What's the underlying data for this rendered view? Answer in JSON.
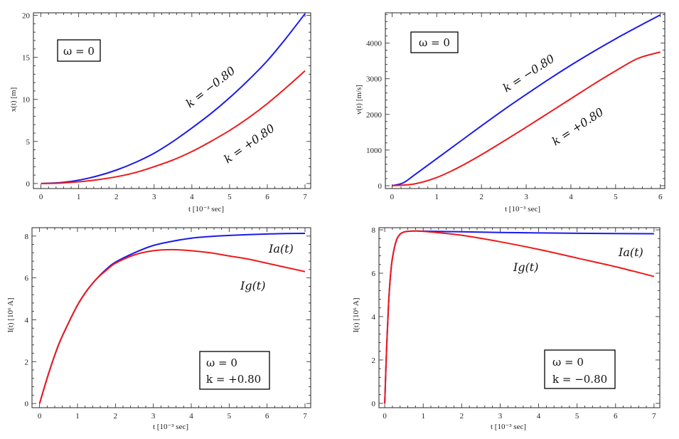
{
  "chart_data": [
    {
      "id": "x_vs_t",
      "type": "line",
      "title": "",
      "xlabel": "t   [10⁻³ sec]",
      "ylabel": "x(t)   [m]",
      "xlim": [
        -0.2,
        7.15
      ],
      "ylim": [
        -0.6,
        20.3
      ],
      "xticks": [
        0,
        1,
        2,
        3,
        4,
        5,
        6,
        7
      ],
      "yticks": [
        0,
        5,
        10,
        15,
        20
      ],
      "box_lines": [
        "ω = 0"
      ],
      "series": [
        {
          "name": "k = −0.80",
          "color": "#1a1aee",
          "x": [
            0,
            0.5,
            1,
            1.5,
            2,
            2.5,
            3,
            3.5,
            4,
            4.5,
            5,
            5.5,
            6,
            6.5,
            7
          ],
          "y": [
            0,
            0.1,
            0.4,
            0.9,
            1.6,
            2.5,
            3.6,
            5.0,
            6.6,
            8.3,
            10.2,
            12.3,
            14.6,
            17.3,
            20.2
          ]
        },
        {
          "name": "k = +0.80",
          "color": "#ee1a1a",
          "x": [
            0,
            0.5,
            1,
            1.5,
            2,
            2.5,
            3,
            3.5,
            4,
            4.5,
            5,
            5.5,
            6,
            6.5,
            7
          ],
          "y": [
            0,
            0.05,
            0.2,
            0.45,
            0.8,
            1.3,
            2.0,
            2.8,
            3.8,
            5.0,
            6.3,
            7.8,
            9.5,
            11.4,
            13.4
          ]
        }
      ],
      "curve_labels": [
        "k = −0.80",
        "k = +0.80"
      ]
    },
    {
      "id": "v_vs_t",
      "type": "line",
      "title": "",
      "xlabel": "t   [10⁻³ sec]",
      "ylabel": "v(t)   [m/s]",
      "xlim": [
        -0.15,
        6.1
      ],
      "ylim": [
        -80,
        4850
      ],
      "xticks": [
        0,
        1,
        2,
        3,
        4,
        5,
        6
      ],
      "yticks": [
        0,
        1000,
        2000,
        3000,
        4000
      ],
      "box_lines": [
        "ω = 0"
      ],
      "series": [
        {
          "name": "k = −0.80",
          "color": "#1a1aee",
          "x": [
            0,
            0.25,
            0.5,
            1,
            1.5,
            2,
            2.5,
            3,
            3.5,
            4,
            4.5,
            5,
            5.5,
            6
          ],
          "y": [
            0,
            80,
            300,
            760,
            1220,
            1680,
            2130,
            2560,
            2980,
            3380,
            3760,
            4120,
            4460,
            4790
          ]
        },
        {
          "name": "k = +0.80",
          "color": "#ee1a1a",
          "x": [
            0,
            0.5,
            1,
            1.5,
            2,
            2.5,
            3,
            3.5,
            4,
            4.5,
            5,
            5.5,
            6
          ],
          "y": [
            0,
            50,
            230,
            520,
            870,
            1250,
            1640,
            2040,
            2440,
            2840,
            3220,
            3570,
            3750
          ]
        }
      ],
      "curve_labels": [
        "k = −0.80",
        "k = +0.80"
      ]
    },
    {
      "id": "I_vs_t_kplus",
      "type": "line",
      "title": "",
      "xlabel": "t   [10⁻³ sec]",
      "ylabel": "I(t)   [10⁶ A]",
      "xlim": [
        -0.2,
        7.15
      ],
      "ylim": [
        -0.2,
        8.4
      ],
      "xticks": [
        0,
        1,
        2,
        3,
        4,
        5,
        6,
        7
      ],
      "yticks": [
        0,
        2,
        4,
        6,
        8
      ],
      "box_lines": [
        "ω = 0",
        "k = +0.80"
      ],
      "series": [
        {
          "name": "Ia(t)",
          "color": "#1a1aee",
          "x": [
            0,
            0.25,
            0.5,
            0.75,
            1,
            1.25,
            1.5,
            1.75,
            2,
            2.5,
            3,
            3.5,
            4,
            4.5,
            5,
            5.5,
            6,
            6.5,
            7
          ],
          "y": [
            0,
            1.5,
            2.8,
            3.8,
            4.7,
            5.4,
            5.95,
            6.4,
            6.75,
            7.2,
            7.55,
            7.75,
            7.9,
            7.98,
            8.03,
            8.07,
            8.1,
            8.12,
            8.13
          ]
        },
        {
          "name": "Ig(t)",
          "color": "#ee1a1a",
          "x": [
            0,
            0.25,
            0.5,
            0.75,
            1,
            1.25,
            1.5,
            1.75,
            2,
            2.5,
            3,
            3.5,
            4,
            4.5,
            5,
            5.5,
            6,
            6.5,
            7
          ],
          "y": [
            0,
            1.5,
            2.8,
            3.8,
            4.7,
            5.4,
            5.95,
            6.35,
            6.7,
            7.1,
            7.3,
            7.35,
            7.3,
            7.2,
            7.05,
            6.9,
            6.7,
            6.5,
            6.3
          ]
        }
      ],
      "curve_labels": [
        "Ia(t)",
        "Ig(t)"
      ]
    },
    {
      "id": "I_vs_t_kminus",
      "type": "line",
      "title": "",
      "xlabel": "t   [10⁻³ sec]",
      "ylabel": "I(t)   [10⁶ A]",
      "xlim": [
        -0.15,
        7.15
      ],
      "ylim": [
        -0.2,
        8.1
      ],
      "xticks": [
        0,
        1,
        2,
        3,
        4,
        5,
        6,
        7
      ],
      "yticks": [
        0,
        2,
        4,
        6,
        8
      ],
      "box_lines": [
        "ω = 0",
        "k = −0.80"
      ],
      "series": [
        {
          "name": "Ia(t)",
          "color": "#1a1aee",
          "x": [
            0,
            0.05,
            0.1,
            0.15,
            0.2,
            0.3,
            0.4,
            0.5,
            0.6,
            0.8,
            1,
            2,
            3,
            4,
            5,
            6,
            7
          ],
          "y": [
            0,
            2.6,
            4.6,
            5.9,
            6.7,
            7.5,
            7.8,
            7.9,
            7.93,
            7.95,
            7.94,
            7.91,
            7.88,
            7.86,
            7.84,
            7.83,
            7.82
          ]
        },
        {
          "name": "Ig(t)",
          "color": "#ee1a1a",
          "x": [
            0,
            0.05,
            0.1,
            0.15,
            0.2,
            0.3,
            0.4,
            0.5,
            0.6,
            0.8,
            1,
            1.5,
            2,
            3,
            4,
            5,
            6,
            7
          ],
          "y": [
            0,
            2.6,
            4.6,
            5.9,
            6.7,
            7.5,
            7.8,
            7.9,
            7.93,
            7.95,
            7.93,
            7.85,
            7.75,
            7.45,
            7.1,
            6.7,
            6.3,
            5.85
          ]
        }
      ],
      "curve_labels": [
        "Ia(t)",
        "Ig(t)"
      ]
    }
  ]
}
